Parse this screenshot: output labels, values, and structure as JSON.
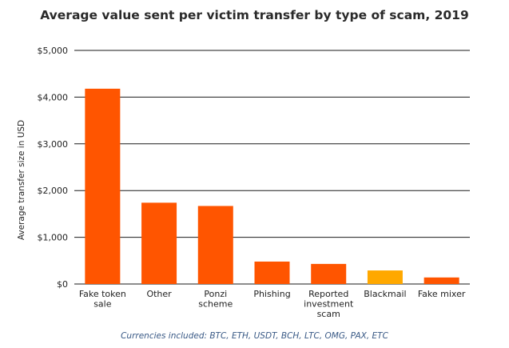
{
  "chart_data": {
    "type": "bar",
    "title": "Average value sent per victim transfer by type of scam, 2019",
    "ylabel": "Average transfer size in USD",
    "xlabel": "",
    "ylim": [
      0,
      5000
    ],
    "yticks": [
      0,
      1000,
      2000,
      3000,
      4000,
      5000
    ],
    "ytick_labels": [
      "$0",
      "$1,000",
      "$2,000",
      "$3,000",
      "$4,000",
      "$5,000"
    ],
    "grid": true,
    "categories": [
      [
        "Fake token",
        "sale"
      ],
      [
        "Other"
      ],
      [
        "Ponzi",
        "scheme"
      ],
      [
        "Phishing"
      ],
      [
        "Reported",
        "investment",
        "scam"
      ],
      [
        "Blackmail"
      ],
      [
        "Fake mixer"
      ]
    ],
    "values": [
      4180,
      1740,
      1670,
      480,
      430,
      290,
      140
    ],
    "bar_colors": [
      "#ff5500",
      "#ff5500",
      "#ff5500",
      "#ff5500",
      "#ff5500",
      "#ffa800",
      "#ff5500"
    ],
    "footnote": "Currencies included: BTC, ETH, USDT, BCH, LTC, OMG, PAX, ETC"
  }
}
